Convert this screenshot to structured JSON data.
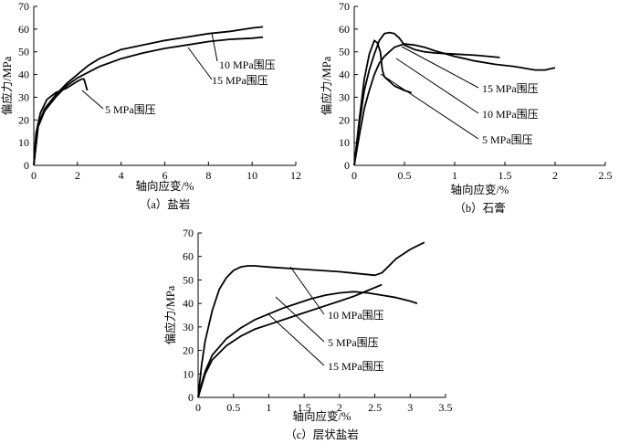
{
  "chart_data": [
    {
      "type": "line",
      "caption": "（a）盐岩",
      "xlabel": "轴向应变/%",
      "ylabel": "偏应力/MPa",
      "xlim": [
        0,
        12
      ],
      "ylim": [
        0,
        70
      ],
      "xticks": [
        0,
        2,
        4,
        6,
        8,
        10,
        12
      ],
      "yticks": [
        0,
        10,
        20,
        30,
        40,
        50,
        60,
        70
      ],
      "series": [
        {
          "name": "5 MPa围压",
          "x": [
            0,
            0.1,
            0.3,
            0.6,
            1.0,
            1.5,
            2.0,
            2.2,
            2.3,
            2.45
          ],
          "y": [
            0,
            14,
            23,
            29,
            32,
            34,
            37,
            38,
            38,
            33
          ]
        },
        {
          "name": "10 MPa围压",
          "x": [
            0,
            0.2,
            0.5,
            1.0,
            1.5,
            2.0,
            2.5,
            3.0,
            4.0,
            5.0,
            6.0,
            7.0,
            8.0,
            9.0,
            10.0,
            10.5
          ],
          "y": [
            0,
            18,
            25,
            31,
            36,
            40,
            44,
            47,
            51,
            53,
            55,
            56.5,
            58,
            59,
            60.5,
            61
          ]
        },
        {
          "name": "15 MPa围压",
          "x": [
            0,
            0.2,
            0.5,
            1.0,
            1.5,
            2.0,
            2.5,
            3.0,
            4.0,
            5.0,
            6.0,
            7.0,
            8.0,
            9.0,
            10.0,
            10.5
          ],
          "y": [
            0,
            17,
            24,
            30,
            35,
            38.5,
            41,
            43.5,
            47,
            49.5,
            51.5,
            53,
            54.5,
            55.5,
            56,
            56.5
          ]
        }
      ],
      "annotations": [
        {
          "text": "10 MPa围压",
          "series": "10 MPa围压"
        },
        {
          "text": "15 MPa围压",
          "series": "15 MPa围压"
        },
        {
          "text": "5 MPa围压",
          "series": "5 MPa围压"
        }
      ]
    },
    {
      "type": "line",
      "caption": "（b）石膏",
      "xlabel": "轴向应变/%",
      "ylabel": "偏应力/MPa",
      "xlim": [
        0,
        2.5
      ],
      "ylim": [
        0,
        70
      ],
      "xticks": [
        0,
        0.5,
        1,
        1.5,
        2,
        2.5
      ],
      "yticks": [
        0,
        10,
        20,
        30,
        40,
        50,
        60,
        70
      ],
      "series": [
        {
          "name": "5 MPa围压",
          "x": [
            0,
            0.05,
            0.1,
            0.15,
            0.2,
            0.23,
            0.26,
            0.28,
            0.3,
            0.35,
            0.4,
            0.5,
            0.57
          ],
          "y": [
            0,
            20,
            38,
            49,
            55,
            54,
            50,
            42,
            39,
            37,
            35,
            33,
            32
          ]
        },
        {
          "name": "10 MPa围压",
          "x": [
            0,
            0.05,
            0.1,
            0.15,
            0.2,
            0.25,
            0.3,
            0.35,
            0.4,
            0.45,
            0.5,
            0.6,
            0.7,
            0.8,
            1.0,
            1.2,
            1.45
          ],
          "y": [
            0,
            18,
            33,
            42,
            49,
            55,
            58,
            58.5,
            58,
            56,
            53,
            51,
            50,
            49.5,
            49,
            48.5,
            47.5
          ]
        },
        {
          "name": "15 MPa围压",
          "x": [
            0,
            0.05,
            0.1,
            0.15,
            0.2,
            0.25,
            0.3,
            0.4,
            0.5,
            0.6,
            0.7,
            0.8,
            1.0,
            1.2,
            1.4,
            1.6,
            1.8,
            1.9,
            2.0
          ],
          "y": [
            0,
            13,
            25,
            33,
            40,
            45,
            48,
            52,
            53.5,
            53,
            52,
            50.5,
            48,
            46,
            44.5,
            43.5,
            42,
            42,
            43
          ]
        }
      ],
      "annotations": [
        {
          "text": "15 MPa围压",
          "series": "15 MPa围压"
        },
        {
          "text": "10 MPa围压",
          "series": "10 MPa围压"
        },
        {
          "text": "5 MPa围压",
          "series": "5 MPa围压"
        }
      ]
    },
    {
      "type": "line",
      "caption": "（c）层状盐岩",
      "xlabel": "轴向应变/%",
      "ylabel": "偏应力/MPa",
      "xlim": [
        0,
        3.5
      ],
      "ylim": [
        0,
        70
      ],
      "xticks": [
        0,
        0.5,
        1,
        1.5,
        2,
        2.5,
        3,
        3.5
      ],
      "yticks": [
        0,
        10,
        20,
        30,
        40,
        50,
        60,
        70
      ],
      "series": [
        {
          "name": "10 MPa围压",
          "x": [
            0,
            0.05,
            0.1,
            0.2,
            0.3,
            0.4,
            0.5,
            0.6,
            0.7,
            0.8,
            1.0,
            1.5,
            2.0,
            2.5,
            2.6,
            2.7,
            2.8,
            3.0,
            3.2
          ],
          "y": [
            0,
            14,
            24,
            37,
            46,
            51,
            54,
            55.5,
            56,
            56,
            55.5,
            54.5,
            53.5,
            52,
            53,
            56,
            59,
            63,
            66
          ]
        },
        {
          "name": "5 MPa围压",
          "x": [
            0,
            0.05,
            0.1,
            0.2,
            0.4,
            0.6,
            0.8,
            1.0,
            1.2,
            1.4,
            1.6,
            1.8,
            2.0,
            2.2,
            2.4,
            2.6,
            2.8,
            3.0,
            3.1
          ],
          "y": [
            0,
            6,
            11,
            18,
            25,
            29.5,
            33,
            35.5,
            38,
            40,
            42,
            43.5,
            44.5,
            45,
            44.5,
            43.5,
            42.5,
            41,
            40
          ]
        },
        {
          "name": "15 MPa围压",
          "x": [
            0,
            0.05,
            0.1,
            0.2,
            0.4,
            0.6,
            0.8,
            1.0,
            1.2,
            1.5,
            1.8,
            2.0,
            2.2,
            2.4,
            2.6
          ],
          "y": [
            0,
            5,
            10,
            16,
            22,
            26,
            29,
            31,
            33,
            36,
            39,
            41,
            43,
            45.5,
            48
          ]
        }
      ],
      "annotations": [
        {
          "text": "10 MPa围压",
          "series": "10 MPa围压"
        },
        {
          "text": "5 MPa围压",
          "series": "5 MPa围压"
        },
        {
          "text": "15 MPa围压",
          "series": "15 MPa围压"
        }
      ]
    }
  ]
}
